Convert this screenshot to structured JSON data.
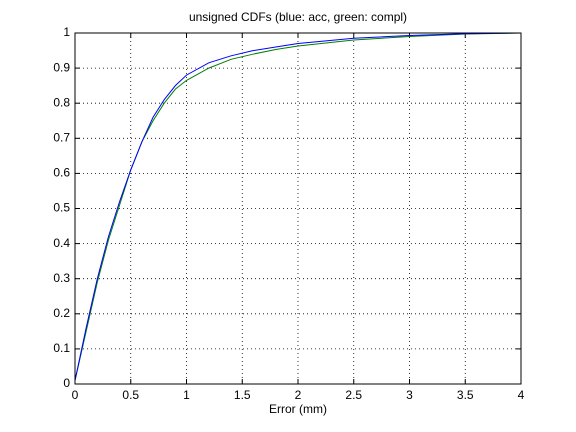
{
  "chart_data": {
    "type": "line",
    "title": "unsigned CDFs (blue: acc, green: compl)",
    "x_label": "Error (mm)",
    "x": [
      0,
      0.1,
      0.2,
      0.3,
      0.4,
      0.5,
      0.6,
      0.7,
      0.8,
      0.9,
      1,
      1.2,
      1.4,
      1.6,
      1.8,
      2,
      2.5,
      3,
      3.5,
      4
    ],
    "series": [
      {
        "name": "acc",
        "color": "#0000ff",
        "values": [
          0.01,
          0.16,
          0.3,
          0.42,
          0.52,
          0.61,
          0.69,
          0.76,
          0.81,
          0.85,
          0.88,
          0.915,
          0.935,
          0.95,
          0.96,
          0.97,
          0.985,
          0.993,
          0.998,
          1
        ]
      },
      {
        "name": "compl",
        "color": "#008000",
        "values": [
          0.01,
          0.15,
          0.29,
          0.41,
          0.51,
          0.61,
          0.69,
          0.75,
          0.8,
          0.84,
          0.865,
          0.9,
          0.925,
          0.94,
          0.953,
          0.963,
          0.98,
          0.99,
          0.997,
          1
        ]
      }
    ],
    "xlim": [
      0,
      4
    ],
    "xticks": [
      0,
      0.5,
      1,
      1.5,
      2,
      2.5,
      3,
      3.5,
      4
    ],
    "ylim": [
      0,
      1
    ],
    "yticks": [
      0,
      0.1,
      0.2,
      0.3,
      0.4,
      0.5,
      0.6,
      0.7,
      0.8,
      0.9,
      1
    ],
    "grid": true
  }
}
